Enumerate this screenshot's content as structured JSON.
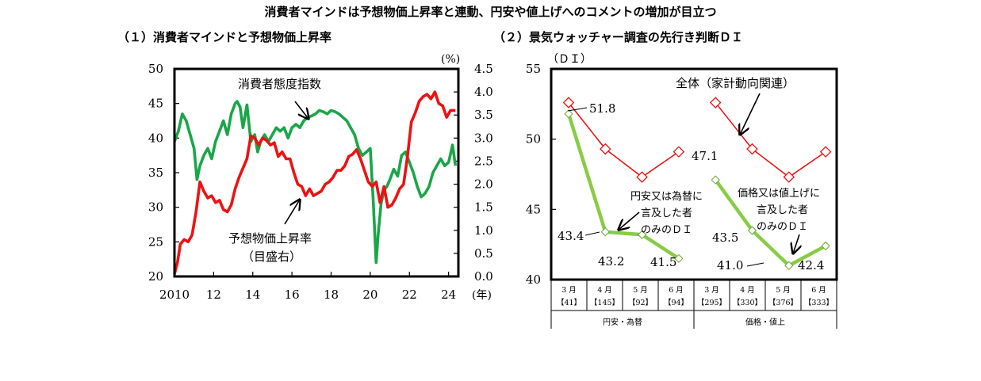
{
  "title": "消費者マインドは予想物価上昇率と連動、円安や値上げへのコメントの増加が目立つ",
  "chart_data": [
    {
      "type": "line",
      "title": "（１）消費者マインドと予想物価上昇率",
      "x_ticks": [
        "2010",
        "12",
        "14",
        "16",
        "18",
        "20",
        "22",
        "24"
      ],
      "x_unit": "(年)",
      "xlim": [
        2010,
        2024.5
      ],
      "y_left_ticks": [
        "50",
        "45",
        "40",
        "35",
        "30",
        "25",
        "20"
      ],
      "ylim_left": [
        20,
        50
      ],
      "y_right_ticks": [
        "4.5",
        "4.0",
        "3.5",
        "3.0",
        "2.5",
        "2.0",
        "1.5",
        "1.0",
        "0.5",
        "0.0"
      ],
      "ylim_right": [
        0,
        4.5
      ],
      "y_right_unit": "(%)",
      "colors": {
        "consumer": "#1aa648",
        "inflation": "#ee1111"
      },
      "series": [
        {
          "name": "消費者態度指数",
          "axis": "left",
          "x": [
            2010.0,
            2010.2,
            2010.4,
            2010.6,
            2010.8,
            2011.0,
            2011.15,
            2011.3,
            2011.5,
            2011.7,
            2011.9,
            2012.1,
            2012.3,
            2012.5,
            2012.7,
            2012.9,
            2013.1,
            2013.2,
            2013.35,
            2013.5,
            2013.7,
            2013.9,
            2014.1,
            2014.25,
            2014.4,
            2014.6,
            2014.8,
            2015.0,
            2015.2,
            2015.4,
            2015.6,
            2015.8,
            2016.0,
            2016.2,
            2016.4,
            2016.6,
            2016.8,
            2017.0,
            2017.2,
            2017.4,
            2017.6,
            2017.8,
            2018.0,
            2018.2,
            2018.4,
            2018.6,
            2018.8,
            2019.0,
            2019.2,
            2019.4,
            2019.6,
            2019.8,
            2020.0,
            2020.15,
            2020.3,
            2020.4,
            2020.55,
            2020.7,
            2020.85,
            2021.0,
            2021.2,
            2021.4,
            2021.6,
            2021.8,
            2022.0,
            2022.2,
            2022.4,
            2022.6,
            2022.8,
            2023.0,
            2023.2,
            2023.4,
            2023.6,
            2023.8,
            2024.0,
            2024.2,
            2024.35
          ],
          "values": [
            39.5,
            41.0,
            43.5,
            42.5,
            40.5,
            38.5,
            34.0,
            36.0,
            37.5,
            38.5,
            37.0,
            39.5,
            41.0,
            42.5,
            40.5,
            43.5,
            45.0,
            45.3,
            44.5,
            41.5,
            44.8,
            39.5,
            40.5,
            38.0,
            39.5,
            40.5,
            39.5,
            40.5,
            41.5,
            41.0,
            41.5,
            40.0,
            41.5,
            42.0,
            41.5,
            42.5,
            43.0,
            43.2,
            43.5,
            44.0,
            43.8,
            43.5,
            44.0,
            43.8,
            43.5,
            43.0,
            42.5,
            41.5,
            40.5,
            38.5,
            37.5,
            38.0,
            38.5,
            31.0,
            22.0,
            26.0,
            30.5,
            32.5,
            33.0,
            34.0,
            35.5,
            34.5,
            37.5,
            38.0,
            36.5,
            35.0,
            33.0,
            31.5,
            32.0,
            33.0,
            35.0,
            36.0,
            37.0,
            36.0,
            36.5,
            39.0,
            36.0
          ]
        },
        {
          "name": "予想物価上昇率",
          "axis": "right",
          "x": [
            2010.0,
            2010.15,
            2010.3,
            2010.5,
            2010.7,
            2010.9,
            2011.1,
            2011.3,
            2011.5,
            2011.7,
            2011.9,
            2012.1,
            2012.3,
            2012.5,
            2012.7,
            2012.9,
            2013.1,
            2013.3,
            2013.5,
            2013.7,
            2013.9,
            2014.1,
            2014.3,
            2014.5,
            2014.7,
            2014.9,
            2015.1,
            2015.3,
            2015.5,
            2015.7,
            2015.9,
            2016.1,
            2016.3,
            2016.5,
            2016.7,
            2016.9,
            2017.1,
            2017.3,
            2017.5,
            2017.7,
            2017.9,
            2018.1,
            2018.3,
            2018.5,
            2018.7,
            2018.9,
            2019.1,
            2019.3,
            2019.5,
            2019.7,
            2019.9,
            2020.1,
            2020.3,
            2020.5,
            2020.7,
            2020.9,
            2021.1,
            2021.3,
            2021.5,
            2021.7,
            2021.9,
            2022.1,
            2022.3,
            2022.5,
            2022.7,
            2022.9,
            2023.1,
            2023.3,
            2023.5,
            2023.7,
            2023.9,
            2024.1,
            2024.35
          ],
          "values": [
            0.05,
            0.3,
            0.7,
            0.8,
            0.75,
            0.9,
            1.4,
            2.05,
            1.85,
            1.7,
            1.75,
            1.6,
            1.65,
            1.45,
            1.4,
            1.55,
            1.9,
            2.15,
            2.35,
            2.55,
            3.05,
            3.0,
            2.85,
            3.0,
            2.95,
            2.85,
            2.9,
            2.6,
            2.7,
            2.55,
            2.55,
            2.25,
            2.0,
            1.95,
            1.75,
            1.9,
            1.75,
            1.8,
            1.85,
            2.0,
            2.05,
            2.15,
            2.3,
            2.3,
            2.4,
            2.6,
            2.65,
            2.75,
            2.55,
            2.3,
            2.05,
            1.95,
            2.05,
            1.6,
            1.95,
            1.5,
            1.55,
            1.7,
            1.9,
            2.0,
            2.6,
            3.35,
            3.55,
            3.8,
            3.9,
            3.95,
            3.85,
            4.0,
            3.75,
            3.7,
            3.45,
            3.6,
            3.6
          ]
        }
      ],
      "annotations": {
        "consumer": "消費者態度指数",
        "inflation_line1": "予想物価上昇率",
        "inflation_line2": "（目盛右）"
      }
    },
    {
      "type": "line",
      "title": "（２）景気ウォッチャー調査の先行き判断ＤＩ",
      "y_unit": "（ＤＩ）",
      "y_ticks": [
        "55",
        "50",
        "45",
        "40"
      ],
      "ylim": [
        40,
        55
      ],
      "colors": {
        "overall": "#ee1111",
        "subset": "#88cc44"
      },
      "group_labels": [
        "円安・為替",
        "価格・値上"
      ],
      "month_labels": [
        "3 月",
        "4 月",
        "5 月",
        "6 月",
        "3 月",
        "4 月",
        "5 月",
        "6 月"
      ],
      "count_labels": [
        "【41】",
        "【145】",
        "【92】",
        "【94】",
        "【295】",
        "【330】",
        "【376】",
        "【333】"
      ],
      "series": [
        {
          "name": "全体（家計動向関連）",
          "groups": [
            [
              52.6,
              49.3,
              47.3,
              49.1
            ],
            [
              52.6,
              49.3,
              47.3,
              49.1
            ]
          ]
        },
        {
          "name": "言及した者のみのＤＩ",
          "groups": [
            [
              51.8,
              43.4,
              43.2,
              41.5
            ],
            [
              47.1,
              43.5,
              41.0,
              42.4
            ]
          ]
        }
      ],
      "value_labels": [
        "51.8",
        "43.4",
        "43.2",
        "41.5",
        "47.1",
        "43.5",
        "41.0",
        "42.4"
      ],
      "annotations": {
        "overall": "全体（家計動向関連）",
        "yen_line1": "円安又は為替に",
        "yen_line2": "言及した者",
        "yen_line3": "のみのＤＩ",
        "price_line1": "価格又は値上げに",
        "price_line2": "言及した者",
        "price_line3": "のみのＤＩ"
      }
    }
  ]
}
